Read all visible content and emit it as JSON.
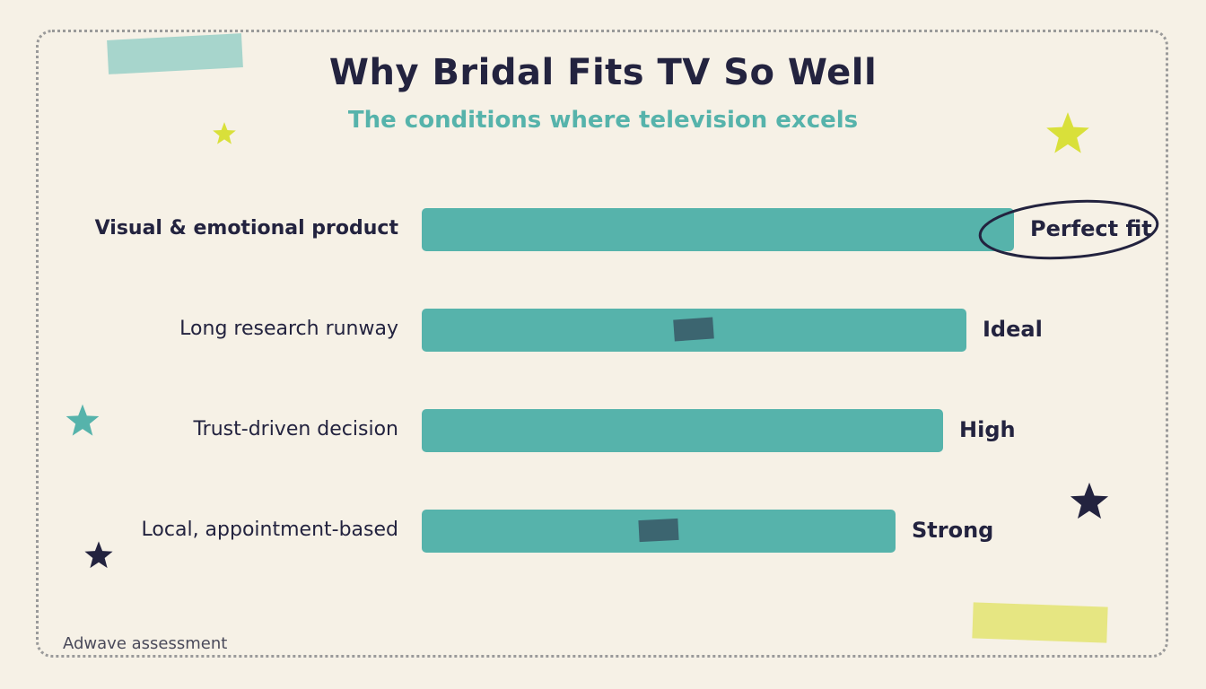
{
  "header": {
    "title": "Why Bridal Fits TV So Well",
    "subtitle": "The conditions where television excels"
  },
  "chart_data": {
    "type": "bar",
    "orientation": "horizontal",
    "title": "Why Bridal Fits TV So Well",
    "subtitle": "The conditions where television excels",
    "categories": [
      "Visual & emotional product",
      "Long research runway",
      "Trust-driven decision",
      "Local, appointment-based"
    ],
    "values": [
      100,
      92,
      88,
      80
    ],
    "value_labels": [
      "Perfect fit",
      "Ideal",
      "High",
      "Strong"
    ],
    "xlim": [
      0,
      100
    ],
    "grid": false,
    "highlight": "Perfect fit"
  },
  "footer": {
    "text": "Adwave assessment"
  },
  "colors": {
    "background": "#f6f1e6",
    "bar": "#56b3ab",
    "text": "#23233f",
    "accent_teal": "#56b3ab",
    "accent_yellow": "#d9e03a",
    "star_navy": "#23233f"
  },
  "decorations": {
    "stars": [
      "yellow-star",
      "yellow-star",
      "teal-star",
      "navy-star",
      "navy-star"
    ],
    "tapes": [
      "teal-tape",
      "yellow-tape"
    ]
  }
}
